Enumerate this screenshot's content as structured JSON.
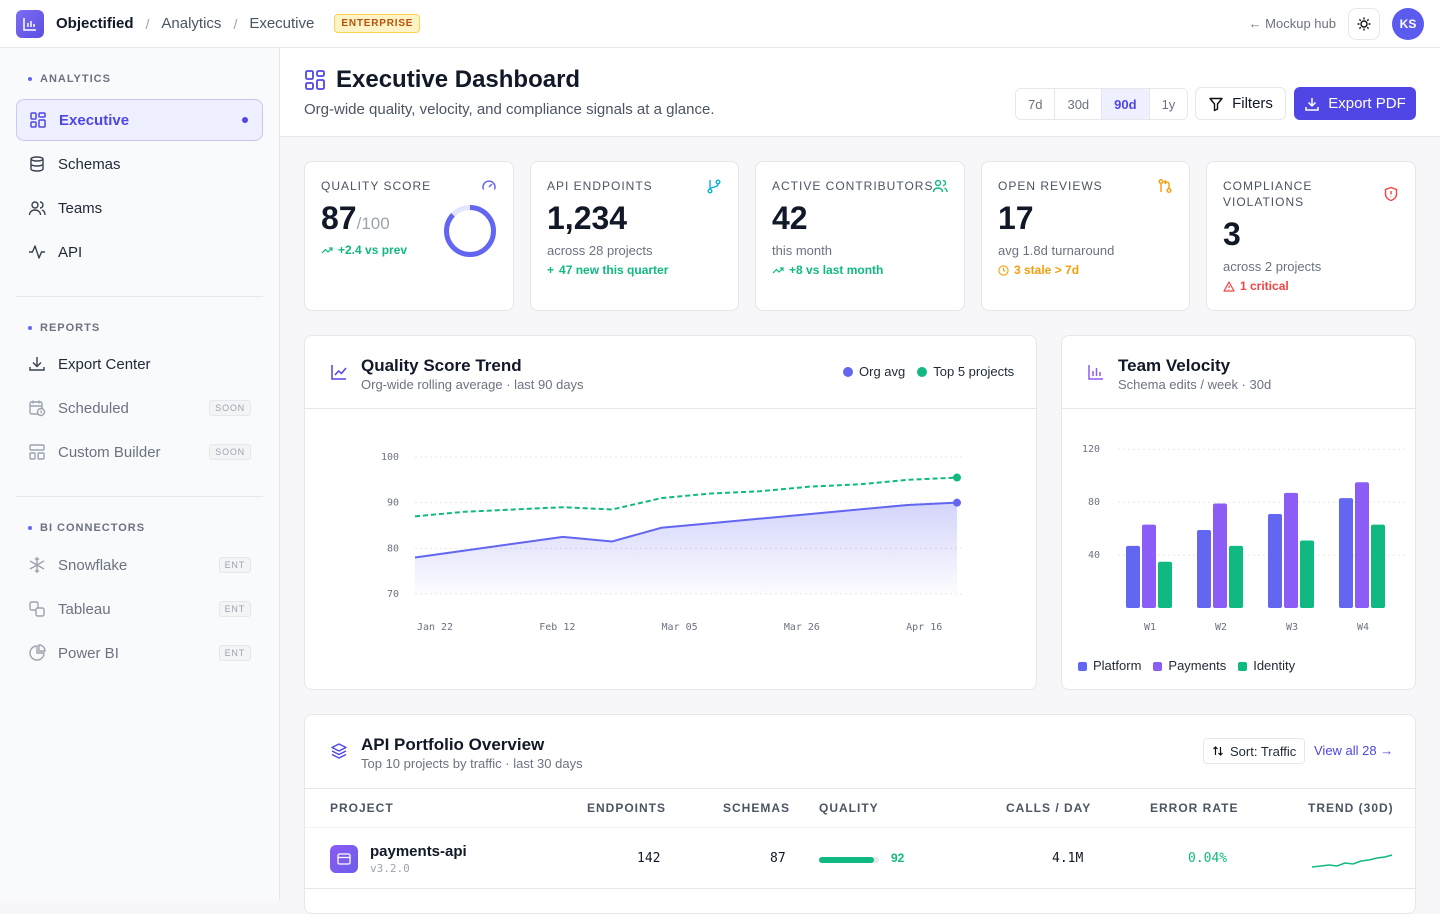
{
  "topbar": {
    "brand": "Objectified",
    "crumbs": [
      "Analytics",
      "Executive"
    ],
    "badge": "ENTERPRISE",
    "hub_link": "← Mockup hub",
    "avatar": "KS"
  },
  "sidebar": {
    "analytics": {
      "title": "ANALYTICS",
      "items": [
        {
          "label": "Executive",
          "icon": "grid-icon"
        },
        {
          "label": "Schemas",
          "icon": "database-icon"
        },
        {
          "label": "Teams",
          "icon": "users-icon"
        },
        {
          "label": "API",
          "icon": "activity-icon"
        }
      ]
    },
    "reports": {
      "title": "REPORTS",
      "items": [
        {
          "label": "Export Center",
          "icon": "download-icon"
        },
        {
          "label": "Scheduled",
          "icon": "calendar-clock-icon",
          "badge": "SOON"
        },
        {
          "label": "Custom Builder",
          "icon": "layout-icon",
          "badge": "SOON"
        }
      ]
    },
    "connectors": {
      "title": "BI CONNECTORS",
      "items": [
        {
          "label": "Snowflake",
          "icon": "snowflake-icon",
          "badge": "ENT"
        },
        {
          "label": "Tableau",
          "icon": "tableau-icon",
          "badge": "ENT"
        },
        {
          "label": "Power BI",
          "icon": "pie-icon",
          "badge": "ENT"
        }
      ]
    }
  },
  "header": {
    "title": "Executive Dashboard",
    "subtitle": "Org-wide quality, velocity, and compliance signals at a glance.",
    "ranges": [
      "7d",
      "30d",
      "90d",
      "1y"
    ],
    "selected_range": "90d",
    "filters": "Filters",
    "export": "Export PDF"
  },
  "kpis": {
    "quality": {
      "label": "QUALITY SCORE",
      "value": "87",
      "denom": "/100",
      "trend": "+2.4 vs prev",
      "ring_fraction": 0.87
    },
    "endpoints": {
      "label": "API ENDPOINTS",
      "value": "1,234",
      "sub": "across 28 projects",
      "trend": "47 new this quarter"
    },
    "contributors": {
      "label": "ACTIVE CONTRIBUTORS",
      "value": "42",
      "sub": "this month",
      "trend": "+8 vs last month"
    },
    "reviews": {
      "label": "OPEN REVIEWS",
      "value": "17",
      "sub": "avg 1.8d turnaround",
      "trend": "3 stale > 7d"
    },
    "compliance": {
      "label_1": "COMPLIANCE",
      "label_2": "VIOLATIONS",
      "value": "3",
      "sub": "across 2 projects",
      "trend": "1 critical"
    }
  },
  "trend_panel": {
    "title": "Quality Score Trend",
    "subtitle": "Org-wide rolling average · last 90 days",
    "legend": [
      "Org avg",
      "Top 5 projects"
    ]
  },
  "velocity_panel": {
    "title": "Team Velocity",
    "subtitle": "Schema edits / week · 30d",
    "legend": [
      "Platform",
      "Payments",
      "Identity"
    ]
  },
  "chart_data": [
    {
      "type": "line",
      "x_tick_labels": [
        "Jan 22",
        "Feb 12",
        "Mar 05",
        "Mar 26",
        "Apr 16"
      ],
      "ylim": [
        70,
        100
      ],
      "y_ticks": [
        70,
        80,
        90,
        100
      ],
      "series": [
        {
          "name": "Org avg",
          "color": "#6366f1",
          "values": [
            78,
            79.5,
            81,
            82.5,
            81.5,
            84.5,
            85.5,
            86.5,
            87.5,
            88.5,
            89.5,
            90
          ]
        },
        {
          "name": "Top 5 projects",
          "color": "#10b981",
          "dashed": true,
          "values": [
            87,
            88,
            88.5,
            89,
            88.5,
            91,
            92,
            92.5,
            93.5,
            94,
            95,
            95.5
          ]
        }
      ],
      "grid": true
    },
    {
      "type": "bar",
      "categories": [
        "W1",
        "W2",
        "W3",
        "W4"
      ],
      "ylim": [
        0,
        130
      ],
      "y_ticks": [
        40,
        80,
        120
      ],
      "series": [
        {
          "name": "Platform",
          "color": "#6366f1",
          "values": [
            47,
            59,
            71,
            83
          ]
        },
        {
          "name": "Payments",
          "color": "#8b5cf6",
          "values": [
            63,
            79,
            87,
            95
          ]
        },
        {
          "name": "Identity",
          "color": "#10b981",
          "values": [
            35,
            47,
            51,
            63
          ]
        }
      ],
      "grid": true
    }
  ],
  "portfolio": {
    "title": "API Portfolio Overview",
    "subtitle": "Top 10 projects by traffic · last 30 days",
    "sort": "Sort: Traffic",
    "view_all": "View all 28 →",
    "headers": [
      "PROJECT",
      "ENDPOINTS",
      "SCHEMAS",
      "QUALITY",
      "CALLS / DAY",
      "ERROR RATE",
      "TREND (30D)"
    ],
    "rows": [
      {
        "name": "payments-api",
        "version": "v3.2.0",
        "endpoints": "142",
        "schemas": "87",
        "quality": "92",
        "quality_fraction": 0.92,
        "calls": "4.1M",
        "error_rate": "0.04%"
      }
    ]
  }
}
